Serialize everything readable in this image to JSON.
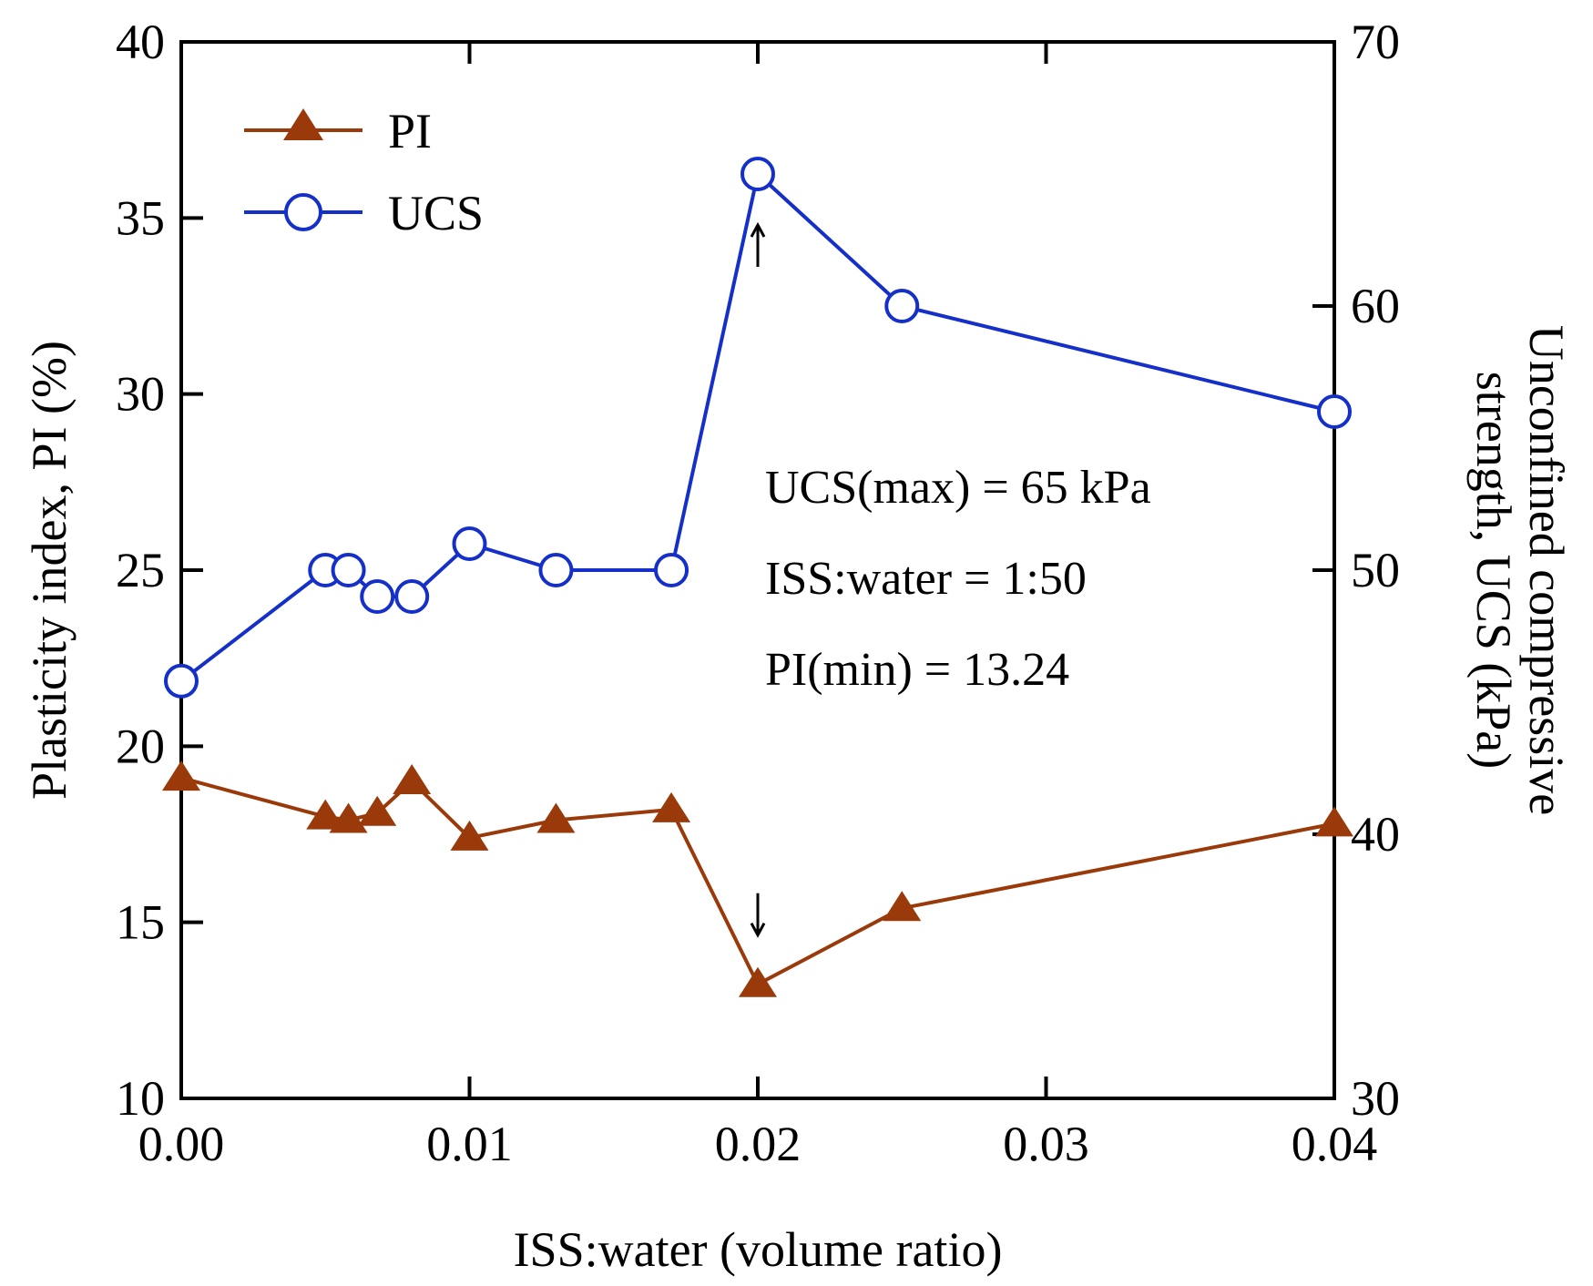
{
  "chart_data": {
    "type": "line",
    "x": [
      0.0,
      0.005,
      0.0058,
      0.0068,
      0.008,
      0.01,
      0.013,
      0.017,
      0.02,
      0.025,
      0.04
    ],
    "x_ticks": [
      "0.00",
      "0.01",
      "0.02",
      "0.03",
      "0.04"
    ],
    "x_tick_values": [
      0,
      0.01,
      0.02,
      0.03,
      0.04
    ],
    "xlim": [
      0,
      0.04
    ],
    "xlabel": "ISS:water (volume ratio)",
    "y_left": {
      "label": "Plasticity index, PI (%)",
      "lim": [
        10,
        40
      ],
      "ticks": [
        "10",
        "15",
        "20",
        "25",
        "30",
        "35",
        "40"
      ],
      "tick_values": [
        10,
        15,
        20,
        25,
        30,
        35,
        40
      ]
    },
    "y_right": {
      "label_line1": "Unconfined compressive",
      "label_line2": "strength, UCS (kPa)",
      "lim": [
        30,
        70
      ],
      "ticks": [
        "30",
        "40",
        "50",
        "60",
        "70"
      ],
      "tick_values": [
        30,
        40,
        50,
        60,
        70
      ]
    },
    "series": [
      {
        "name": "PI",
        "axis": "left",
        "marker": "triangle",
        "color": "#9a3a0a",
        "values": [
          19.1,
          18.0,
          17.9,
          18.1,
          19.0,
          17.4,
          17.9,
          18.2,
          13.24,
          15.4,
          17.8
        ]
      },
      {
        "name": "UCS",
        "axis": "right",
        "marker": "circle-open",
        "color": "#1530c8",
        "values": [
          45.8,
          50.0,
          50.0,
          49.0,
          49.0,
          51.0,
          50.0,
          50.0,
          65.0,
          60.0,
          56.0
        ]
      }
    ],
    "annotations": [
      "UCS(max) = 65 kPa",
      "ISS:water = 1:50",
      "PI(min) = 13.24"
    ],
    "arrows": [
      {
        "x": 0.02,
        "series": "UCS",
        "direction": "up"
      },
      {
        "x": 0.02,
        "series": "PI",
        "direction": "down"
      }
    ],
    "legend": "top-left",
    "grid": false
  }
}
